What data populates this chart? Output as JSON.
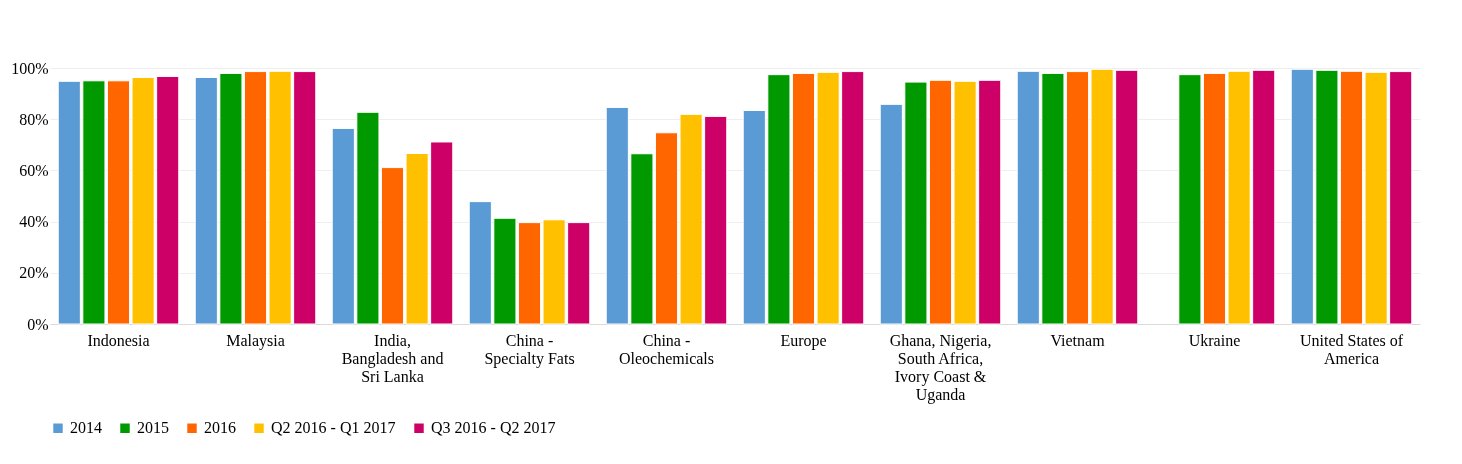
{
  "chart_data": {
    "type": "bar",
    "categories": [
      "Indonesia",
      "Malaysia",
      "India, Bangladesh and Sri Lanka",
      "China - Specialty Fats",
      "China - Oleochemicals",
      "Europe",
      "Ghana, Nigeria, South Africa, Ivory Coast & Uganda",
      "Vietnam",
      "Ukraine",
      "United States of America"
    ],
    "series": [
      {
        "name": "2014",
        "color": "#5b9bd5",
        "values": [
          94.8,
          96.3,
          76.4,
          47.8,
          84.6,
          83.4,
          85.8,
          98.7,
          null,
          99.5
        ]
      },
      {
        "name": "2015",
        "color": "#009900",
        "values": [
          95.0,
          97.9,
          82.7,
          41.3,
          66.5,
          97.4,
          94.5,
          97.9,
          97.4,
          99.1
        ]
      },
      {
        "name": "2016",
        "color": "#ff6600",
        "values": [
          95.0,
          98.6,
          61.1,
          39.6,
          74.7,
          97.9,
          95.2,
          98.6,
          97.9,
          98.7
        ]
      },
      {
        "name": "Q2 2016 - Q1 2017",
        "color": "#ffc000",
        "values": [
          96.3,
          98.7,
          66.6,
          40.7,
          81.9,
          98.3,
          94.8,
          99.5,
          98.7,
          98.3
        ]
      },
      {
        "name": "Q3 2016 - Q2 2017",
        "color": "#cc0066",
        "values": [
          96.7,
          98.6,
          71.1,
          39.6,
          81.1,
          98.6,
          95.2,
          99.1,
          99.1,
          98.6
        ]
      }
    ],
    "ylim": [
      0,
      100
    ],
    "yticks": [
      {
        "value": 0,
        "label": "0%"
      },
      {
        "value": 20,
        "label": "20%"
      },
      {
        "value": 40,
        "label": "40%"
      },
      {
        "value": 60,
        "label": "60%"
      },
      {
        "value": 80,
        "label": "80%"
      },
      {
        "value": 100,
        "label": "100%"
      }
    ],
    "grid": "y",
    "legend": "bottom"
  }
}
